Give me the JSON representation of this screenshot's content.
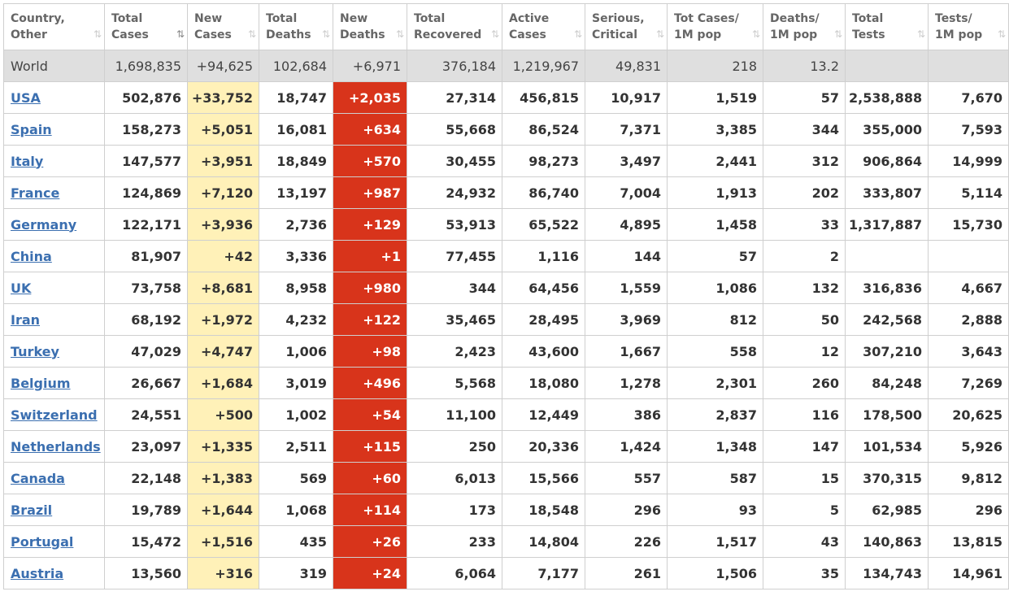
{
  "columns": [
    {
      "line1": "Country,",
      "line2": "Other",
      "sort": "⇅",
      "active": false
    },
    {
      "line1": "Total",
      "line2": "Cases",
      "sort": "⇅",
      "active": true
    },
    {
      "line1": "New",
      "line2": "Cases",
      "sort": "⇅",
      "active": false
    },
    {
      "line1": "Total",
      "line2": "Deaths",
      "sort": "⇅",
      "active": false
    },
    {
      "line1": "New",
      "line2": "Deaths",
      "sort": "⇅",
      "active": false
    },
    {
      "line1": "Total",
      "line2": "Recovered",
      "sort": "⇅",
      "active": false
    },
    {
      "line1": "Active",
      "line2": "Cases",
      "sort": "⇅",
      "active": false
    },
    {
      "line1": "Serious,",
      "line2": "Critical",
      "sort": "⇅",
      "active": false
    },
    {
      "line1": "Tot Cases/",
      "line2": "1M pop",
      "sort": "⇅",
      "active": false
    },
    {
      "line1": "Deaths/",
      "line2": "1M pop",
      "sort": "⇅",
      "active": false
    },
    {
      "line1": "Total",
      "line2": "Tests",
      "sort": "⇅",
      "active": false
    },
    {
      "line1": "Tests/",
      "line2": "1M pop",
      "sort": "⇅",
      "active": false
    }
  ],
  "world": [
    "World",
    "1,698,835",
    "+94,625",
    "102,684",
    "+6,971",
    "376,184",
    "1,219,967",
    "49,831",
    "218",
    "13.2",
    "",
    ""
  ],
  "rows": [
    [
      "USA",
      "502,876",
      "+33,752",
      "18,747",
      "+2,035",
      "27,314",
      "456,815",
      "10,917",
      "1,519",
      "57",
      "2,538,888",
      "7,670"
    ],
    [
      "Spain",
      "158,273",
      "+5,051",
      "16,081",
      "+634",
      "55,668",
      "86,524",
      "7,371",
      "3,385",
      "344",
      "355,000",
      "7,593"
    ],
    [
      "Italy",
      "147,577",
      "+3,951",
      "18,849",
      "+570",
      "30,455",
      "98,273",
      "3,497",
      "2,441",
      "312",
      "906,864",
      "14,999"
    ],
    [
      "France",
      "124,869",
      "+7,120",
      "13,197",
      "+987",
      "24,932",
      "86,740",
      "7,004",
      "1,913",
      "202",
      "333,807",
      "5,114"
    ],
    [
      "Germany",
      "122,171",
      "+3,936",
      "2,736",
      "+129",
      "53,913",
      "65,522",
      "4,895",
      "1,458",
      "33",
      "1,317,887",
      "15,730"
    ],
    [
      "China",
      "81,907",
      "+42",
      "3,336",
      "+1",
      "77,455",
      "1,116",
      "144",
      "57",
      "2",
      "",
      ""
    ],
    [
      "UK",
      "73,758",
      "+8,681",
      "8,958",
      "+980",
      "344",
      "64,456",
      "1,559",
      "1,086",
      "132",
      "316,836",
      "4,667"
    ],
    [
      "Iran",
      "68,192",
      "+1,972",
      "4,232",
      "+122",
      "35,465",
      "28,495",
      "3,969",
      "812",
      "50",
      "242,568",
      "2,888"
    ],
    [
      "Turkey",
      "47,029",
      "+4,747",
      "1,006",
      "+98",
      "2,423",
      "43,600",
      "1,667",
      "558",
      "12",
      "307,210",
      "3,643"
    ],
    [
      "Belgium",
      "26,667",
      "+1,684",
      "3,019",
      "+496",
      "5,568",
      "18,080",
      "1,278",
      "2,301",
      "260",
      "84,248",
      "7,269"
    ],
    [
      "Switzerland",
      "24,551",
      "+500",
      "1,002",
      "+54",
      "11,100",
      "12,449",
      "386",
      "2,837",
      "116",
      "178,500",
      "20,625"
    ],
    [
      "Netherlands",
      "23,097",
      "+1,335",
      "2,511",
      "+115",
      "250",
      "20,336",
      "1,424",
      "1,348",
      "147",
      "101,534",
      "5,926"
    ],
    [
      "Canada",
      "22,148",
      "+1,383",
      "569",
      "+60",
      "6,013",
      "15,566",
      "557",
      "587",
      "15",
      "370,315",
      "9,812"
    ],
    [
      "Brazil",
      "19,789",
      "+1,644",
      "1,068",
      "+114",
      "173",
      "18,548",
      "296",
      "93",
      "5",
      "62,985",
      "296"
    ],
    [
      "Portugal",
      "15,472",
      "+1,516",
      "435",
      "+26",
      "233",
      "14,804",
      "226",
      "1,517",
      "43",
      "140,863",
      "13,815"
    ],
    [
      "Austria",
      "13,560",
      "+316",
      "319",
      "+24",
      "6,064",
      "7,177",
      "261",
      "1,506",
      "35",
      "134,743",
      "14,961"
    ]
  ]
}
